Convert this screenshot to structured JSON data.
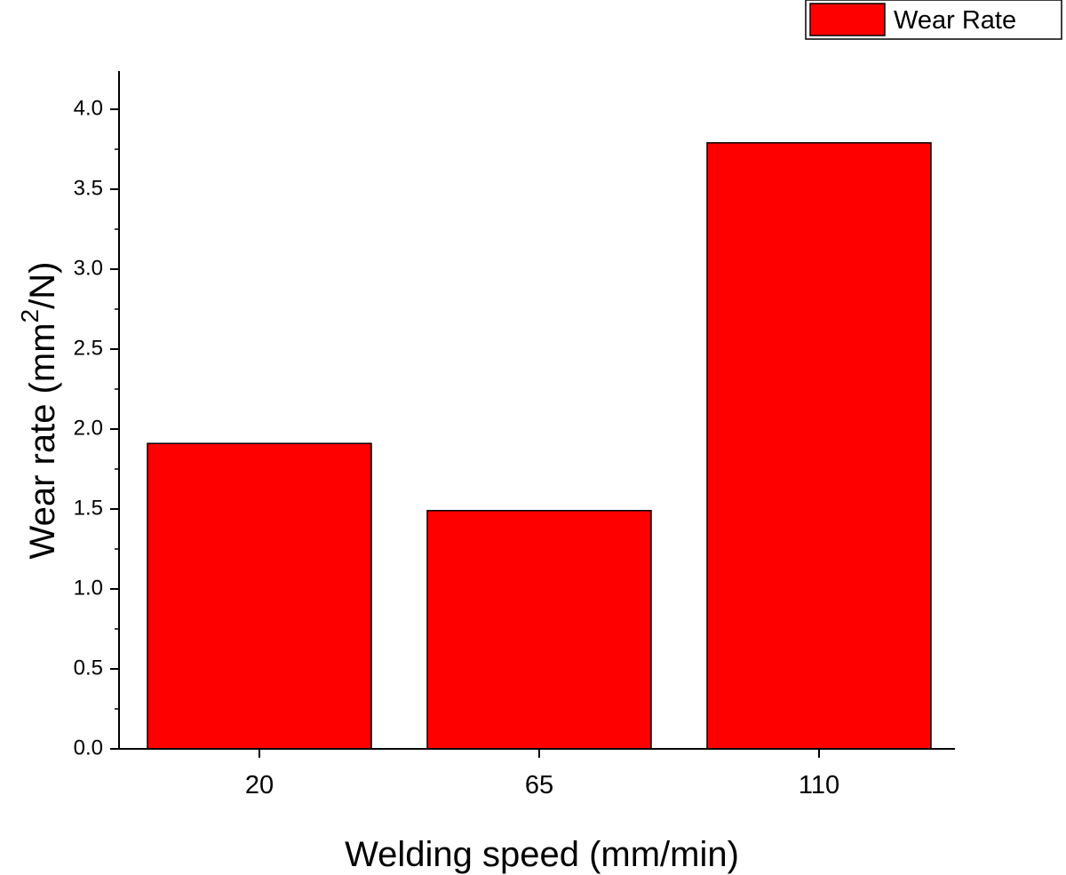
{
  "chart_data": {
    "type": "bar",
    "categories": [
      "20",
      "65",
      "110"
    ],
    "series": [
      {
        "name": "Wear Rate",
        "values": [
          1.91,
          1.49,
          3.79
        ],
        "color": "#ff0000"
      }
    ],
    "title": "",
    "xlabel": "Welding speed (mm/min)",
    "ylabel": {
      "prefix": "Wear rate (mm",
      "superscript": "2",
      "suffix": "/N)"
    },
    "ylim": [
      0,
      4.25
    ],
    "yticks": [
      "0.0",
      "0.5",
      "1.0",
      "1.5",
      "2.0",
      "2.5",
      "3.0",
      "3.5",
      "4.0"
    ],
    "grid": false,
    "legend_position": "top-right"
  }
}
